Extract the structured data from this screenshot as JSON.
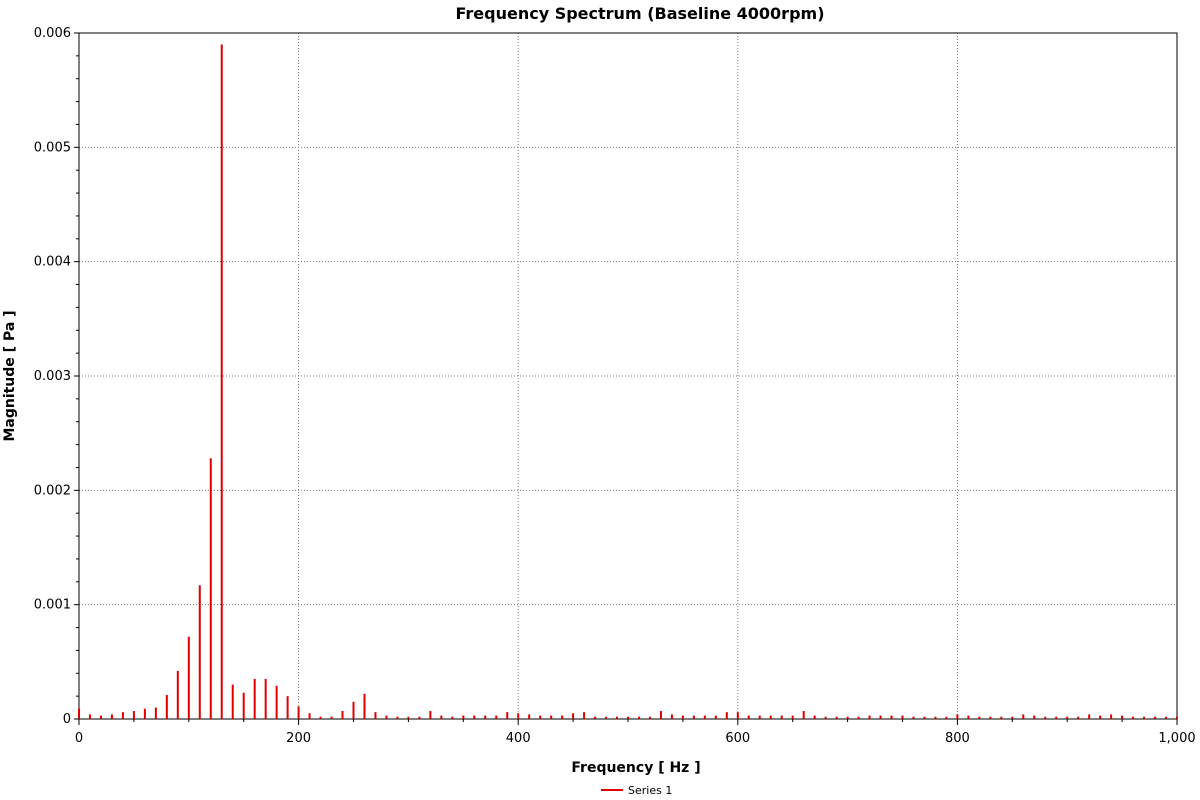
{
  "chart_data": {
    "type": "bar",
    "title": "Frequency Spectrum (Baseline 4000rpm)",
    "xlabel": "Frequency [ Hz ]",
    "ylabel": "Magnitude [ Pa ]",
    "xlim": [
      0,
      1000
    ],
    "ylim": [
      0,
      0.006
    ],
    "x_ticks": [
      "0",
      "200",
      "400",
      "600",
      "800",
      "1,000"
    ],
    "y_ticks": [
      "0",
      "0.001",
      "0.002",
      "0.003",
      "0.004",
      "0.005",
      "0.006"
    ],
    "grid": true,
    "legend_position": "bottom-center",
    "series": [
      {
        "name": "Series 1",
        "color": "#e00000",
        "x": [
          0,
          10,
          20,
          30,
          40,
          50,
          60,
          70,
          80,
          90,
          100,
          110,
          120,
          130,
          140,
          150,
          160,
          170,
          180,
          190,
          200,
          210,
          220,
          230,
          240,
          250,
          260,
          270,
          280,
          290,
          300,
          310,
          320,
          330,
          340,
          350,
          360,
          370,
          380,
          390,
          400,
          410,
          420,
          430,
          440,
          450,
          460,
          470,
          480,
          490,
          500,
          510,
          520,
          530,
          540,
          550,
          560,
          570,
          580,
          590,
          600,
          610,
          620,
          630,
          640,
          650,
          660,
          670,
          680,
          690,
          700,
          710,
          720,
          730,
          740,
          750,
          760,
          770,
          780,
          790,
          800,
          810,
          820,
          830,
          840,
          850,
          860,
          870,
          880,
          890,
          900,
          910,
          920,
          930,
          940,
          950,
          960,
          970,
          980,
          990,
          1000
        ],
        "values": [
          9e-05,
          4e-05,
          3e-05,
          4e-05,
          6e-05,
          7e-05,
          9e-05,
          0.0001,
          0.00021,
          0.00042,
          0.00072,
          0.00117,
          0.00228,
          0.0059,
          0.0003,
          0.00023,
          0.00035,
          0.00035,
          0.00029,
          0.0002,
          0.00011,
          5e-05,
          2e-05,
          2e-05,
          7e-05,
          0.00015,
          0.00022,
          6e-05,
          3e-05,
          2e-05,
          2e-05,
          2e-05,
          7e-05,
          3e-05,
          2e-05,
          3e-05,
          3e-05,
          3e-05,
          3e-05,
          6e-05,
          5e-05,
          4e-05,
          3e-05,
          3e-05,
          3e-05,
          5e-05,
          6e-05,
          2e-05,
          2e-05,
          2e-05,
          2e-05,
          2e-05,
          2e-05,
          7e-05,
          4e-05,
          3e-05,
          3e-05,
          3e-05,
          3e-05,
          6e-05,
          6e-05,
          3e-05,
          3e-05,
          3e-05,
          3e-05,
          3e-05,
          7e-05,
          3e-05,
          2e-05,
          2e-05,
          2e-05,
          2e-05,
          3e-05,
          3e-05,
          3e-05,
          3e-05,
          2e-05,
          2e-05,
          2e-05,
          2e-05,
          4e-05,
          3e-05,
          2e-05,
          2e-05,
          2e-05,
          2e-05,
          4e-05,
          3e-05,
          2e-05,
          2e-05,
          2e-05,
          2e-05,
          4e-05,
          3e-05,
          4e-05,
          3e-05,
          2e-05,
          2e-05,
          2e-05,
          2e-05,
          2e-05
        ]
      }
    ]
  }
}
